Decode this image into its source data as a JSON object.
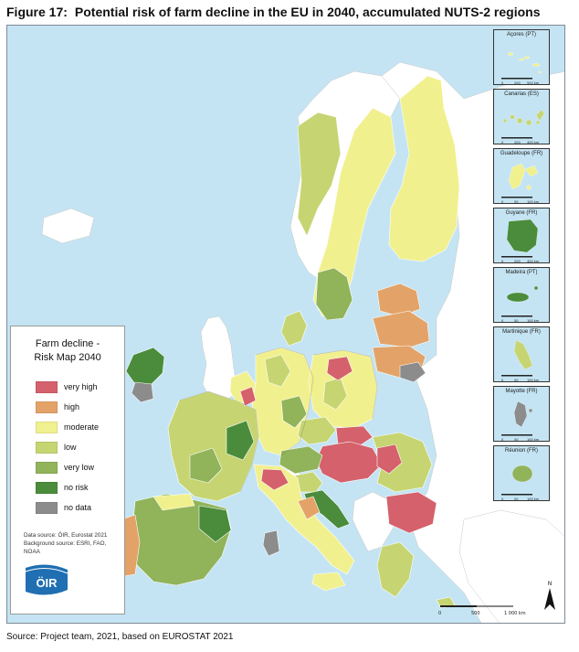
{
  "figure": {
    "number": "Figure 17:",
    "title": "Potential risk of farm decline in the EU in 2040, accumulated NUTS-2 regions"
  },
  "legend": {
    "title_line1": "Farm decline -",
    "title_line2": "Risk Map 2040",
    "items": [
      {
        "label": "very high",
        "color": "#d4616b"
      },
      {
        "label": "high",
        "color": "#e3a368"
      },
      {
        "label": "moderate",
        "color": "#f1f08e"
      },
      {
        "label": "low",
        "color": "#c6d572"
      },
      {
        "label": "very low",
        "color": "#91b35a"
      },
      {
        "label": "no risk",
        "color": "#4a8c3b"
      },
      {
        "label": "no data",
        "color": "#8c8c8c"
      }
    ],
    "data_source": "Data source: ÖIR, Eurostat 2021",
    "background_source_line1": "Background source: ESRI, FAO,",
    "background_source_line2": "NOAA"
  },
  "logo": {
    "text": "ÖIR",
    "color": "#1f6fb2"
  },
  "insets": [
    {
      "title": "Açores (PT)",
      "s0": "0",
      "s1": "200",
      "s2": "500 km"
    },
    {
      "title": "Canarias (ES)",
      "s0": "0",
      "s1": "200",
      "s2": "400 km"
    },
    {
      "title": "Guadeloupe (FR)",
      "s0": "0",
      "s1": "50",
      "s2": "100 km"
    },
    {
      "title": "Guyane (FR)",
      "s0": "0",
      "s1": "200",
      "s2": "400 km"
    },
    {
      "title": "Madeira (PT)",
      "s0": "0",
      "s1": "50",
      "s2": "100 km"
    },
    {
      "title": "Martinique (FR)",
      "s0": "0",
      "s1": "50",
      "s2": "100 km"
    },
    {
      "title": "Mayotte (FR)",
      "s0": "0",
      "s1": "50",
      "s2": "100 km"
    },
    {
      "title": "Réunion (FR)",
      "s0": "0",
      "s1": "50",
      "s2": "100 km"
    }
  ],
  "scalebar": {
    "s0": "0",
    "s1": "500",
    "s2": "1 000 km"
  },
  "north_label": "N",
  "source": "Source: Project team, 2021, based on EUROSTAT 2021",
  "colors": {
    "sea": "#c4e4f3",
    "non_eu_land": "#ffffff",
    "very_high": "#d4616b",
    "high": "#e3a368",
    "moderate": "#f1f08e",
    "low": "#c6d572",
    "very_low": "#91b35a",
    "no_risk": "#4a8c3b",
    "no_data": "#8c8c8c"
  }
}
